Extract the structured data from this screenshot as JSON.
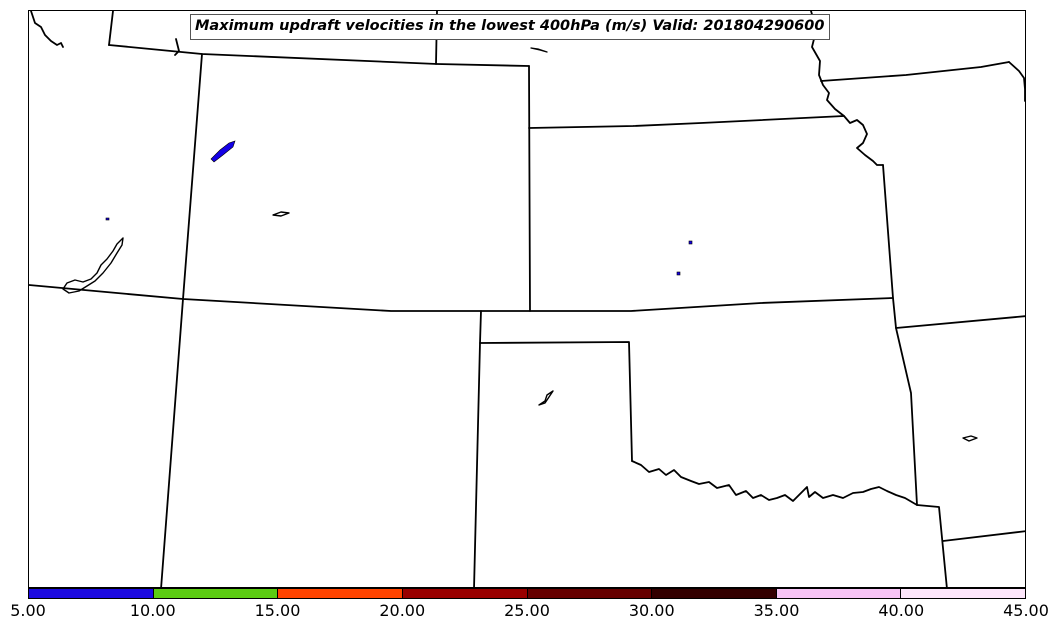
{
  "title": "Maximum updraft velocities in the lowest 400hPa (m/s) Valid: 201804290600",
  "colorbar": {
    "ticks": [
      "5.00",
      "10.00",
      "15.00",
      "20.00",
      "25.00",
      "30.00",
      "35.00",
      "40.00",
      "45.00"
    ],
    "colors": [
      "#1c0ae0",
      "#5ccc12",
      "#ff4400",
      "#990000",
      "#660000",
      "#330000",
      "#f7c4f5",
      "#fde6fb"
    ]
  },
  "map": {
    "boundary_color": "#000000",
    "feature_color": "#1400e6"
  }
}
